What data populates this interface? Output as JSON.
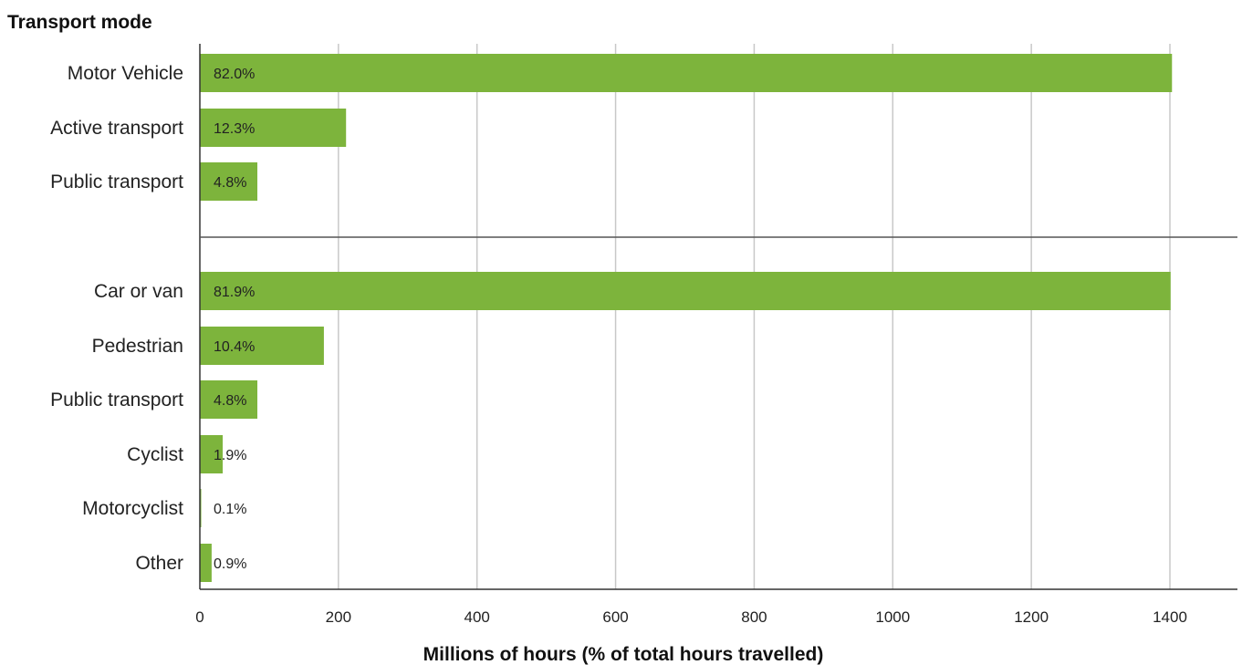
{
  "chart_data": {
    "type": "bar",
    "orientation": "horizontal",
    "title": "Transport mode",
    "xlabel": "Millions of hours (% of total hours travelled)",
    "ylabel": "",
    "xlim": [
      0,
      1400
    ],
    "xticks": [
      "0",
      "200",
      "400",
      "600",
      "800",
      "1000",
      "1200",
      "1400"
    ],
    "grid": true,
    "bar_color": "#7db43c",
    "groups": [
      {
        "categories": [
          "Motor Vehicle",
          "Active transport",
          "Public transport"
        ],
        "values": [
          1403,
          211,
          83
        ],
        "labels": [
          "82.0%",
          "12.3%",
          "4.8%"
        ]
      },
      {
        "categories": [
          "Car or van",
          "Pedestrian",
          "Public transport",
          "Cyclist",
          "Motorcyclist",
          "Other"
        ],
        "values": [
          1401,
          179,
          83,
          33,
          2,
          17
        ],
        "labels": [
          "81.9%",
          "10.4%",
          "4.8%",
          "1.9%",
          "0.1%",
          "0.9%"
        ]
      }
    ]
  }
}
